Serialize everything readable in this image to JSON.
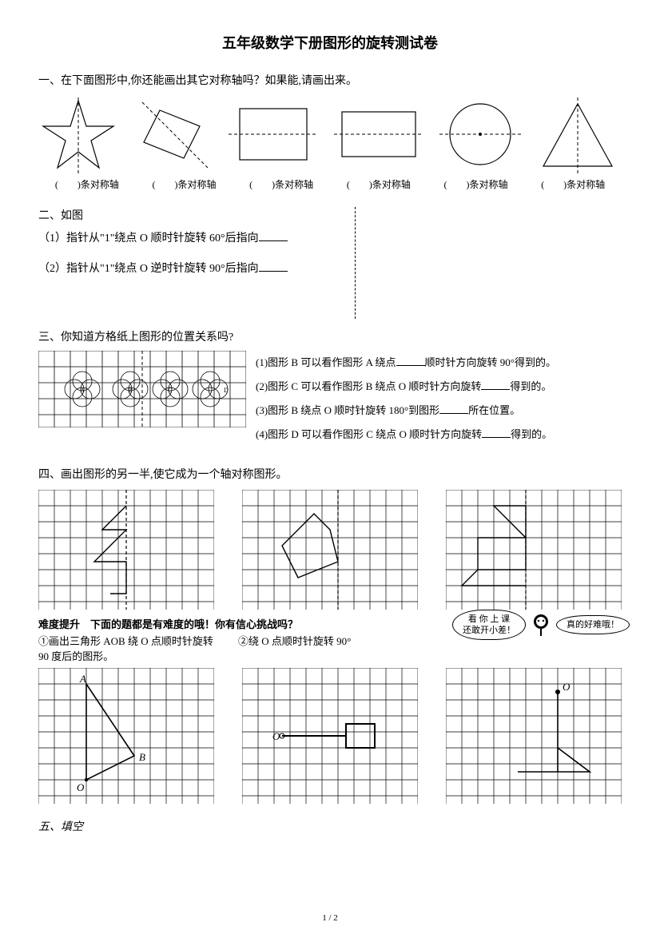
{
  "title": "五年级数学下册图形的旋转测试卷",
  "q1": {
    "prompt": "一、在下面图形中,你还能画出其它对称轴吗？如果能,请画出来。",
    "label": "(　　)条对称轴"
  },
  "q2": {
    "head": "二、如图",
    "item1": "（1）指针从\"1\"绕点 O 顺时针旋转 60°后指向",
    "item2": "（2）指针从\"1\"绕点 O 逆时针旋转 90°后指向"
  },
  "q3": {
    "head": "三、你知道方格纸上图形的位置关系吗?",
    "i1a": "(1)图形 B 可以看作图形 A 绕点",
    "i1b": "顺时针方向旋转 90°得到的。",
    "i2a": "(2)图形 C 可以看作图形 B 绕点 O 顺时针方向旋转",
    "i2b": "得到的。",
    "i3a": "(3)图形 B 绕点 O 顺时针旋转 180°到图形",
    "i3b": "所在位置。",
    "i4a": "(4)图形 D 可以看作图形 C 绕点 O 顺时针方向旋转",
    "i4b": "得到的。"
  },
  "q4": {
    "head": "四、画出图形的另一半,使它成为一个轴对称图形。",
    "difficulty_head": "难度提升　下面的题都是有难度的哦！你有信心挑战吗？",
    "sub1": "①画出三角形 AOB 绕 O 点顺时针旋转 90 度后的图形。",
    "sub2": "②绕 O 点顺时针旋转 90°",
    "bubble1": "看 你 上 课\n还敢开小差！",
    "bubble2": "真的好难哦！"
  },
  "q5": {
    "head": "五、填空"
  },
  "pagenum": "1 / 2",
  "grid": {
    "cell": 20,
    "stroke": "#000",
    "dash": "4,3"
  }
}
